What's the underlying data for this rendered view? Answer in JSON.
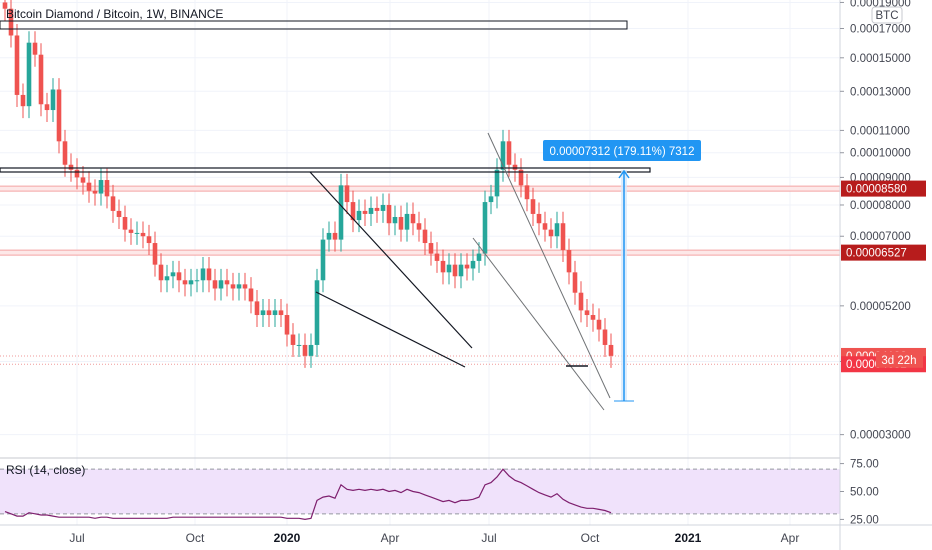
{
  "chart_title": "Bitcoin Diamond / Bitcoin, 1W, BINANCE",
  "currency_badge": "BTC",
  "measure_label": "0.00007312 (179.11%) 7312",
  "rsi_label": "RSI (14, close)",
  "countdown": "3d 22h",
  "colors": {
    "up": "#26a69a",
    "down": "#ef5350",
    "rsi_line": "#7e1f6e",
    "rsi_band": "#f0e2fb",
    "measure": "#2196f3",
    "level_line": "#f4a3a3"
  },
  "chart_data": [
    {
      "type": "candlestick",
      "title": "Bitcoin Diamond / Bitcoin, 1W, BINANCE",
      "y_scale": "log",
      "y_ticks": [
        "0.00019000",
        "0.00017000",
        "0.00015000",
        "0.00013000",
        "0.00011000",
        "0.00010000",
        "0.00009000",
        "0.00008000",
        "0.00007000",
        "0.00005200",
        "0.00004100",
        "0.00003000"
      ],
      "x_ticks": [
        {
          "label": "Jul",
          "bold": false
        },
        {
          "label": "Oct",
          "bold": false
        },
        {
          "label": "2020",
          "bold": true
        },
        {
          "label": "Apr",
          "bold": false
        },
        {
          "label": "Jul",
          "bold": false
        },
        {
          "label": "Oct",
          "bold": false
        },
        {
          "label": "2021",
          "bold": true
        },
        {
          "label": "Apr",
          "bold": false
        }
      ],
      "price_labels": [
        {
          "value": "0.00008580",
          "style": "dark"
        },
        {
          "value": "0.00006527",
          "style": "dark"
        },
        {
          "value": "0.00004198",
          "style": "light"
        },
        {
          "value": "0.00004052",
          "style": "red"
        }
      ],
      "close": [
        0.000185,
        0.000165,
        0.000128,
        0.000122,
        0.00016,
        0.000152,
        0.000123,
        0.00012,
        0.000131,
        0.000105,
        9.5e-05,
        9.3e-05,
        9e-05,
        8.8e-05,
        8.5e-05,
        8.4e-05,
        8.9e-05,
        8.3e-05,
        7.8e-05,
        7.6e-05,
        7.2e-05,
        7.1e-05,
        7.1e-05,
        7e-05,
        6.8e-05,
        6.2e-05,
        5.8e-05,
        5.9e-05,
        6e-05,
        5.8e-05,
        5.7e-05,
        5.8e-05,
        5.8e-05,
        6.1e-05,
        5.8e-05,
        5.6e-05,
        5.8e-05,
        5.7e-05,
        5.6e-05,
        5.7e-05,
        5.6e-05,
        5.3e-05,
        5e-05,
        5.1e-05,
        5e-05,
        5.1e-05,
        5e-05,
        4.6e-05,
        4.4e-05,
        4.4e-05,
        4.2e-05,
        4.4e-05,
        5.8e-05,
        6.9e-05,
        7.1e-05,
        6.9e-05,
        8.7e-05,
        8.1e-05,
        7.5e-05,
        7.8e-05,
        7.7e-05,
        7.9e-05,
        7.8e-05,
        8e-05,
        7.4e-05,
        7.6e-05,
        7.2e-05,
        7.7e-05,
        7.4e-05,
        7.2e-05,
        6.8e-05,
        6.5e-05,
        6.3e-05,
        6e-05,
        6.2e-05,
        5.9e-05,
        6.2e-05,
        6.1e-05,
        6.3e-05,
        6.5e-05,
        8.1e-05,
        8.3e-05,
        9.3e-05,
        0.000105,
        9.5e-05,
        9.3e-05,
        8.7e-05,
        8.2e-05,
        7.7e-05,
        7.4e-05,
        7.2e-05,
        7e-05,
        7.4e-05,
        6.6e-05,
        6e-05,
        5.5e-05,
        5.1e-05,
        5e-05,
        4.9e-05,
        4.7e-05,
        4.4e-05,
        4.2e-05
      ],
      "rsi": {
        "label": "RSI (14, close)",
        "y_ticks": [
          "75.00",
          "50.00",
          "25.00"
        ],
        "upper_band": 70,
        "lower_band": 30,
        "values": [
          32,
          30,
          28,
          28,
          31,
          30,
          29,
          29,
          28,
          27,
          27,
          27,
          27,
          27,
          27,
          26,
          27,
          27,
          26,
          26,
          26,
          26,
          26,
          26,
          26,
          26,
          26,
          26,
          27,
          27,
          27,
          27,
          27,
          27,
          27,
          27,
          27,
          27,
          27,
          27,
          27,
          27,
          27,
          27,
          27,
          27,
          27,
          26,
          26,
          26,
          25,
          26,
          42,
          45,
          46,
          44,
          56,
          52,
          51,
          52,
          51,
          52,
          51,
          52,
          50,
          51,
          49,
          52,
          50,
          49,
          47,
          45,
          43,
          41,
          42,
          40,
          42,
          42,
          43,
          45,
          56,
          58,
          63,
          70,
          64,
          60,
          58,
          55,
          52,
          49,
          47,
          45,
          48,
          43,
          40,
          38,
          36,
          35,
          35,
          34,
          33,
          31
        ]
      }
    }
  ]
}
